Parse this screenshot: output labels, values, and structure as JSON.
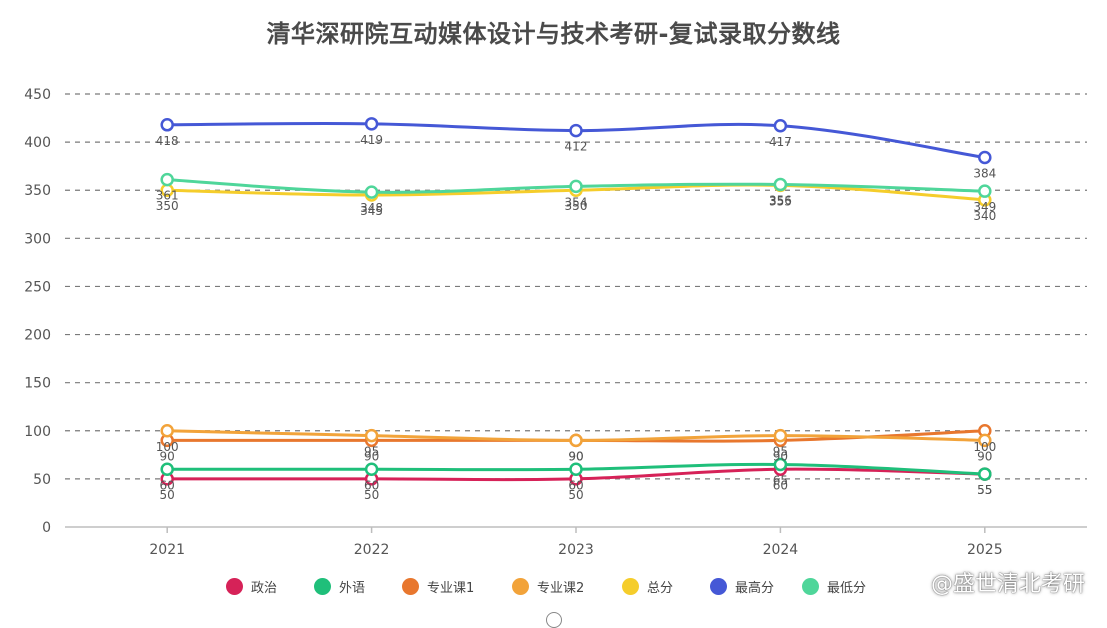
{
  "chart_data": {
    "type": "line",
    "title": "清华深研院互动媒体设计与技术考研-复试录取分数线",
    "categories": [
      "2021",
      "2022",
      "2023",
      "2024",
      "2025"
    ],
    "ylim": [
      0,
      450
    ],
    "y_ticks": [
      "0",
      "50",
      "100",
      "150",
      "200",
      "250",
      "300",
      "350",
      "400",
      "450"
    ],
    "grid": "horizontal-dashed",
    "legend_position": "bottom",
    "series": [
      {
        "name": "政治",
        "color": "#d62258",
        "values": [
          50,
          50,
          50,
          60,
          55
        ]
      },
      {
        "name": "外语",
        "color": "#1fbf7a",
        "values": [
          60,
          60,
          60,
          65,
          55
        ]
      },
      {
        "name": "专业课1",
        "color": "#e8772e",
        "values": [
          90,
          90,
          90,
          90,
          100
        ]
      },
      {
        "name": "专业课2",
        "color": "#f2a33a",
        "values": [
          100,
          95,
          90,
          95,
          90
        ]
      },
      {
        "name": "总分",
        "color": "#f5cd2b",
        "values": [
          350,
          345,
          350,
          355,
          340
        ]
      },
      {
        "name": "最高分",
        "color": "#4558d6",
        "values": [
          418,
          419,
          412,
          417,
          384
        ]
      },
      {
        "name": "最低分",
        "color": "#4fd69a",
        "values": [
          361,
          348,
          354,
          356,
          349
        ]
      }
    ]
  },
  "watermark": "@盛世清北考研"
}
